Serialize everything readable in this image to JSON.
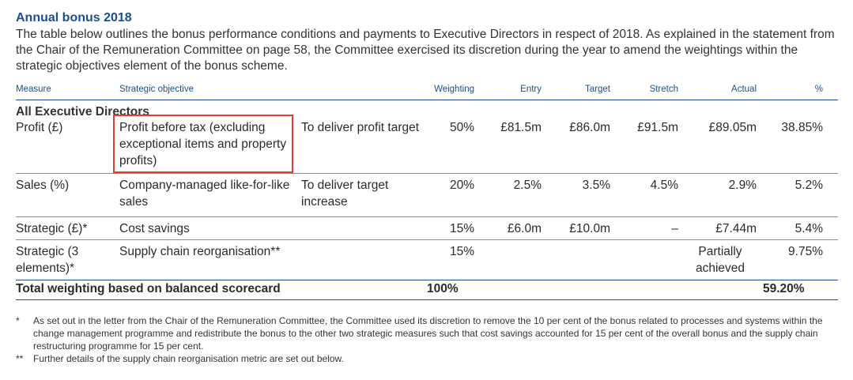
{
  "heading": "Annual bonus 2018",
  "intro": "The table below outlines the bonus performance conditions and payments to Executive Directors in respect of 2018. As explained in the statement from the Chair of the Remuneration Committee on page 58, the Committee exercised its discretion during the year to amend the weightings within the strategic objectives element of the bonus scheme.",
  "table": {
    "headers": {
      "measure": "Measure",
      "objective": "Strategic objective",
      "weighting": "Weighting",
      "entry": "Entry",
      "target": "Target",
      "stretch": "Stretch",
      "actual": "Actual",
      "pct": "%"
    },
    "section": "All Executive Directors",
    "rows": [
      {
        "measure": "Profit (£)",
        "objective": "Profit before tax (excluding exceptional items and property profits)",
        "desc": "To deliver profit target",
        "weighting": "50%",
        "entry": "£81.5m",
        "target": "£86.0m",
        "stretch": "£91.5m",
        "actual": "£89.05m",
        "pct": "38.85%"
      },
      {
        "measure": "Sales (%)",
        "objective": "Company-managed like-for-like sales",
        "desc": "To deliver target increase",
        "weighting": "20%",
        "entry": "2.5%",
        "target": "3.5%",
        "stretch": "4.5%",
        "actual": "2.9%",
        "pct": "5.2%"
      },
      {
        "measure": "Strategic (£)*",
        "objective": "Cost savings",
        "desc": "",
        "weighting": "15%",
        "entry": "£6.0m",
        "target": "£10.0m",
        "stretch": "–",
        "actual": "£7.44m",
        "pct": "5.4%"
      },
      {
        "measure": "Strategic (3 elements)*",
        "objective": "Supply chain reorganisation**",
        "desc": "",
        "weighting": "15%",
        "entry": "",
        "target": "",
        "stretch": "",
        "actual": "Partially achieved",
        "pct": "9.75%"
      }
    ],
    "total": {
      "label": "Total weighting based on balanced scorecard",
      "weighting": "100%",
      "pct": "59.20%"
    }
  },
  "notes": [
    {
      "mark": "*",
      "text": "As set out in the letter from the Chair of the Remuneration Committee, the Committee used its discretion to remove the 10 per cent of the bonus related to processes and systems within the change management programme and redistribute the bonus to the other two strategic measures such that cost savings accounted for 15 per cent of the overall bonus and the supply chain restructuring programme for 15 per cent."
    },
    {
      "mark": "**",
      "text": "Further details of the supply chain reorganisation metric are set out below."
    }
  ],
  "colors": {
    "heading": "#1f4e8c",
    "highlight": "#e0402a"
  }
}
